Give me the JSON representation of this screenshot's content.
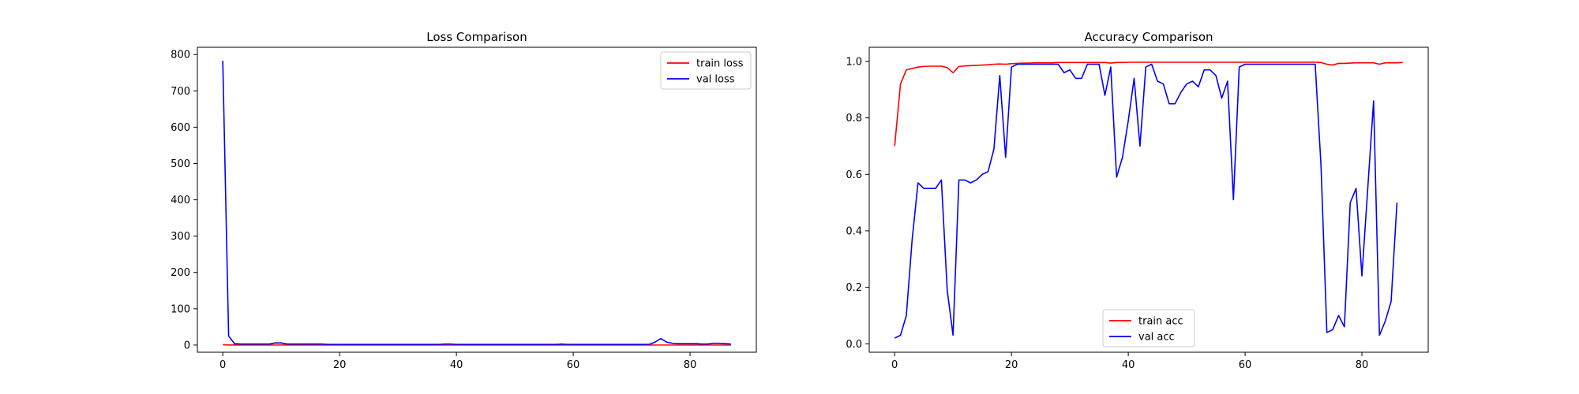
{
  "chart_data": [
    {
      "type": "line",
      "title": "Loss Comparison",
      "xlabel": "",
      "ylabel": "",
      "xlim": [
        -4.35,
        91.35
      ],
      "ylim": [
        -19.7,
        820
      ],
      "xticks": [
        0,
        20,
        40,
        60,
        80
      ],
      "yticks": [
        0,
        100,
        200,
        300,
        400,
        500,
        600,
        700,
        800
      ],
      "grid": false,
      "legend_position": "top-right",
      "series": [
        {
          "name": "train loss",
          "color": "#ff0000",
          "values": [
            1.0,
            0.3,
            0.2,
            0.2,
            0.1,
            0.1,
            0.1,
            0.1,
            0.1,
            0.1,
            0.2,
            0.1,
            0.1,
            0.1,
            0.1,
            0.1,
            0.1,
            0.1,
            0.1,
            0.1,
            0.1,
            0.1,
            0.1,
            0.1,
            0.1,
            0.1,
            0.1,
            0.1,
            0.1,
            0.1,
            0.1,
            0.1,
            0.1,
            0.1,
            0.1,
            0.1,
            0.1,
            0.1,
            0.1,
            0.1,
            0.1,
            0.1,
            0.1,
            0.1,
            0.1,
            0.1,
            0.1,
            0.1,
            0.1,
            0.1,
            0.1,
            0.1,
            0.1,
            0.1,
            0.1,
            0.1,
            0.1,
            0.1,
            0.1,
            0.1,
            0.1,
            0.1,
            0.1,
            0.1,
            0.1,
            0.1,
            0.1,
            0.1,
            0.1,
            0.1,
            0.1,
            0.1,
            0.1,
            0.1,
            0.1,
            0.1,
            0.1,
            0.1,
            0.1,
            0.1,
            0.1,
            0.1,
            0.1,
            0.1,
            0.1,
            0.1,
            0.1,
            0.1
          ]
        },
        {
          "name": "val loss",
          "color": "#0000ff",
          "values": [
            783,
            25,
            4,
            3,
            3,
            3,
            3,
            3,
            3,
            6,
            6,
            3,
            3,
            3,
            3,
            3,
            3,
            3,
            2,
            2,
            2,
            2,
            2,
            2,
            2,
            2,
            2,
            2,
            2,
            2,
            2,
            2,
            2,
            2,
            2,
            2,
            2,
            2,
            3,
            3,
            2,
            2,
            2,
            2,
            2,
            2,
            2,
            2,
            2,
            2,
            2,
            2,
            2,
            2,
            2,
            2,
            2,
            2,
            3,
            2,
            2,
            2,
            2,
            2,
            2,
            2,
            2,
            2,
            2,
            2,
            2,
            2,
            2,
            2,
            8,
            18,
            8,
            5,
            4,
            4,
            4,
            4,
            3,
            3,
            5,
            5,
            4,
            3
          ]
        }
      ]
    },
    {
      "type": "line",
      "title": "Accuracy Comparison",
      "xlabel": "",
      "ylabel": "",
      "xlim": [
        -4.35,
        91.35
      ],
      "ylim": [
        -0.03,
        1.05
      ],
      "xticks": [
        0,
        20,
        40,
        60,
        80
      ],
      "yticks": [
        0.0,
        0.2,
        0.4,
        0.6,
        0.8,
        1.0
      ],
      "grid": false,
      "legend_position": "lower-center",
      "series": [
        {
          "name": "train acc",
          "color": "#ff0000",
          "values": [
            0.7,
            0.92,
            0.97,
            0.975,
            0.98,
            0.982,
            0.983,
            0.983,
            0.983,
            0.978,
            0.96,
            0.982,
            0.984,
            0.985,
            0.986,
            0.987,
            0.988,
            0.99,
            0.991,
            0.99,
            0.992,
            0.993,
            0.994,
            0.994,
            0.995,
            0.995,
            0.995,
            0.995,
            0.996,
            0.996,
            0.996,
            0.996,
            0.996,
            0.996,
            0.996,
            0.996,
            0.996,
            0.994,
            0.996,
            0.996,
            0.997,
            0.997,
            0.997,
            0.997,
            0.997,
            0.997,
            0.997,
            0.997,
            0.997,
            0.997,
            0.997,
            0.997,
            0.997,
            0.997,
            0.997,
            0.997,
            0.997,
            0.997,
            0.997,
            0.997,
            0.997,
            0.997,
            0.997,
            0.997,
            0.997,
            0.997,
            0.997,
            0.997,
            0.997,
            0.997,
            0.997,
            0.997,
            0.997,
            0.996,
            0.99,
            0.987,
            0.993,
            0.993,
            0.994,
            0.995,
            0.995,
            0.995,
            0.995,
            0.99,
            0.995,
            0.995,
            0.995,
            0.996
          ]
        },
        {
          "name": "val acc",
          "color": "#0000ff",
          "values": [
            0.02,
            0.03,
            0.1,
            0.37,
            0.57,
            0.55,
            0.55,
            0.55,
            0.58,
            0.19,
            0.03,
            0.58,
            0.58,
            0.57,
            0.58,
            0.6,
            0.61,
            0.69,
            0.95,
            0.66,
            0.98,
            0.99,
            0.99,
            0.99,
            0.99,
            0.99,
            0.99,
            0.99,
            0.99,
            0.96,
            0.97,
            0.94,
            0.94,
            0.99,
            0.99,
            0.99,
            0.88,
            0.98,
            0.59,
            0.66,
            0.79,
            0.94,
            0.7,
            0.98,
            0.99,
            0.93,
            0.92,
            0.85,
            0.85,
            0.89,
            0.92,
            0.93,
            0.91,
            0.97,
            0.97,
            0.95,
            0.87,
            0.93,
            0.51,
            0.98,
            0.99,
            0.99,
            0.99,
            0.99,
            0.99,
            0.99,
            0.99,
            0.99,
            0.99,
            0.99,
            0.99,
            0.99,
            0.99,
            0.63,
            0.04,
            0.05,
            0.1,
            0.06,
            0.5,
            0.55,
            0.24,
            0.55,
            0.86,
            0.03,
            0.08,
            0.15,
            0.5
          ]
        }
      ]
    }
  ]
}
